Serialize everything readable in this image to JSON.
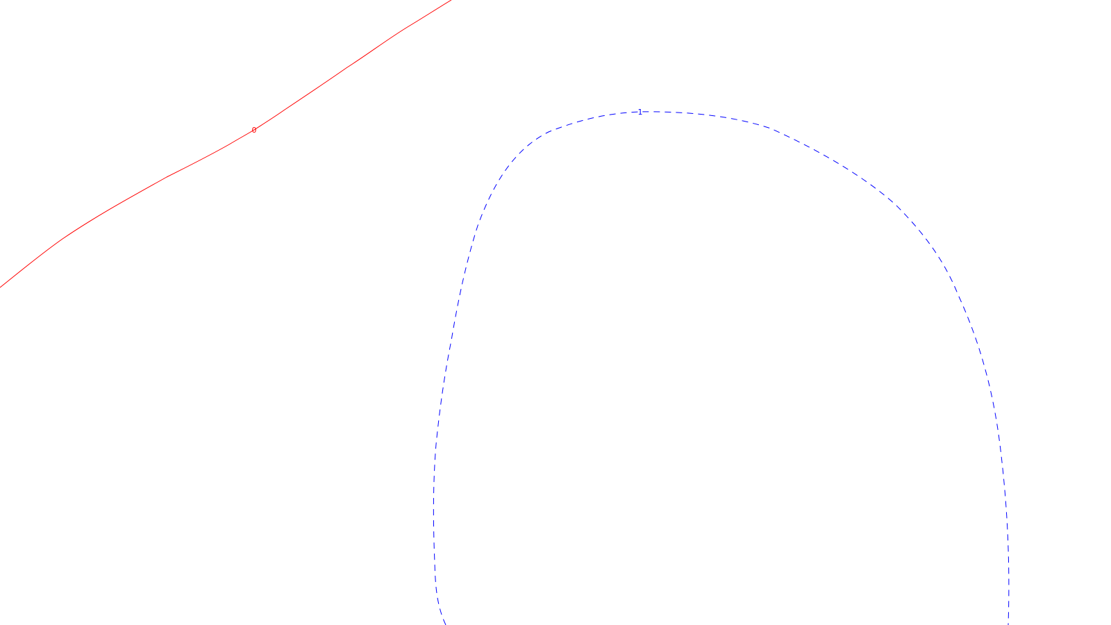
{
  "contours": [
    {
      "id": "contour-0",
      "label": "0",
      "color": "#ff0000",
      "line_style": "solid"
    },
    {
      "id": "contour-1",
      "label": "1",
      "color": "#0000ff",
      "line_style": "dashed"
    }
  ]
}
